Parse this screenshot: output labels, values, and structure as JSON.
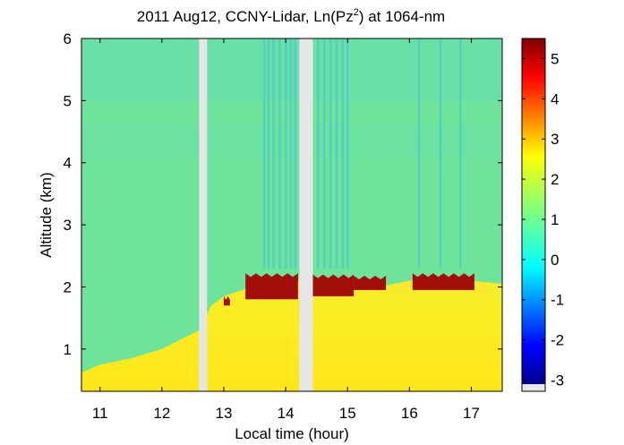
{
  "chart_data": {
    "type": "heatmap",
    "title": "2011 Aug12, CCNY-Lidar, Ln(Pz",
    "title_superscript": "2",
    "title_suffix": ") at 1064-nm",
    "xlabel": "Local time (hour)",
    "ylabel": "Altitude (km)",
    "xlim": [
      10.7,
      17.5
    ],
    "ylim": [
      0.32,
      6.0
    ],
    "x_ticks": [
      "11",
      "12",
      "13",
      "14",
      "15",
      "16",
      "17"
    ],
    "y_ticks": [
      "1",
      "2",
      "3",
      "4",
      "5",
      "6"
    ],
    "colorbar": {
      "range": [
        -3.1,
        5.5
      ],
      "ticks": [
        "-3",
        "-2",
        "-1",
        "0",
        "1",
        "2",
        "3",
        "4",
        "5"
      ],
      "colormap": "jet",
      "nodata_color": "#e6e6e6"
    },
    "missing_data_gaps": [
      [
        12.6,
        12.73
      ],
      [
        14.22,
        14.44
      ]
    ],
    "boundary_layer_top_km": [
      {
        "x": 10.7,
        "y": 0.62
      },
      {
        "x": 11.0,
        "y": 0.75
      },
      {
        "x": 11.5,
        "y": 0.85
      },
      {
        "x": 12.0,
        "y": 1.0
      },
      {
        "x": 12.6,
        "y": 1.3
      },
      {
        "x": 12.8,
        "y": 1.7
      },
      {
        "x": 13.0,
        "y": 1.85
      },
      {
        "x": 13.3,
        "y": 1.95
      },
      {
        "x": 13.6,
        "y": 2.05
      },
      {
        "x": 14.0,
        "y": 2.1
      },
      {
        "x": 14.2,
        "y": 2.1
      },
      {
        "x": 14.5,
        "y": 2.1
      },
      {
        "x": 15.0,
        "y": 2.05
      },
      {
        "x": 15.5,
        "y": 2.0
      },
      {
        "x": 16.0,
        "y": 2.1
      },
      {
        "x": 16.5,
        "y": 2.15
      },
      {
        "x": 17.0,
        "y": 2.1
      },
      {
        "x": 17.5,
        "y": 2.05
      }
    ],
    "cloud_top_segments": [
      {
        "x_start": 13.0,
        "x_end": 13.1,
        "y_start": 1.7,
        "y_end": 1.85
      },
      {
        "x_start": 13.35,
        "x_end": 14.2,
        "y_start": 1.8,
        "y_end": 2.22
      },
      {
        "x_start": 14.44,
        "x_end": 15.1,
        "y_start": 1.85,
        "y_end": 2.2
      },
      {
        "x_start": 15.1,
        "x_end": 15.62,
        "y_start": 1.95,
        "y_end": 2.18
      },
      {
        "x_start": 16.05,
        "x_end": 17.05,
        "y_start": 1.95,
        "y_end": 2.22
      }
    ],
    "colors": {
      "free_troposphere": "#6ee39b",
      "upper_layer": "#66dfad",
      "boundary_layer": "#f6ec2c",
      "surface_layer": "#fff200",
      "cloud": "#a30d0a"
    }
  }
}
